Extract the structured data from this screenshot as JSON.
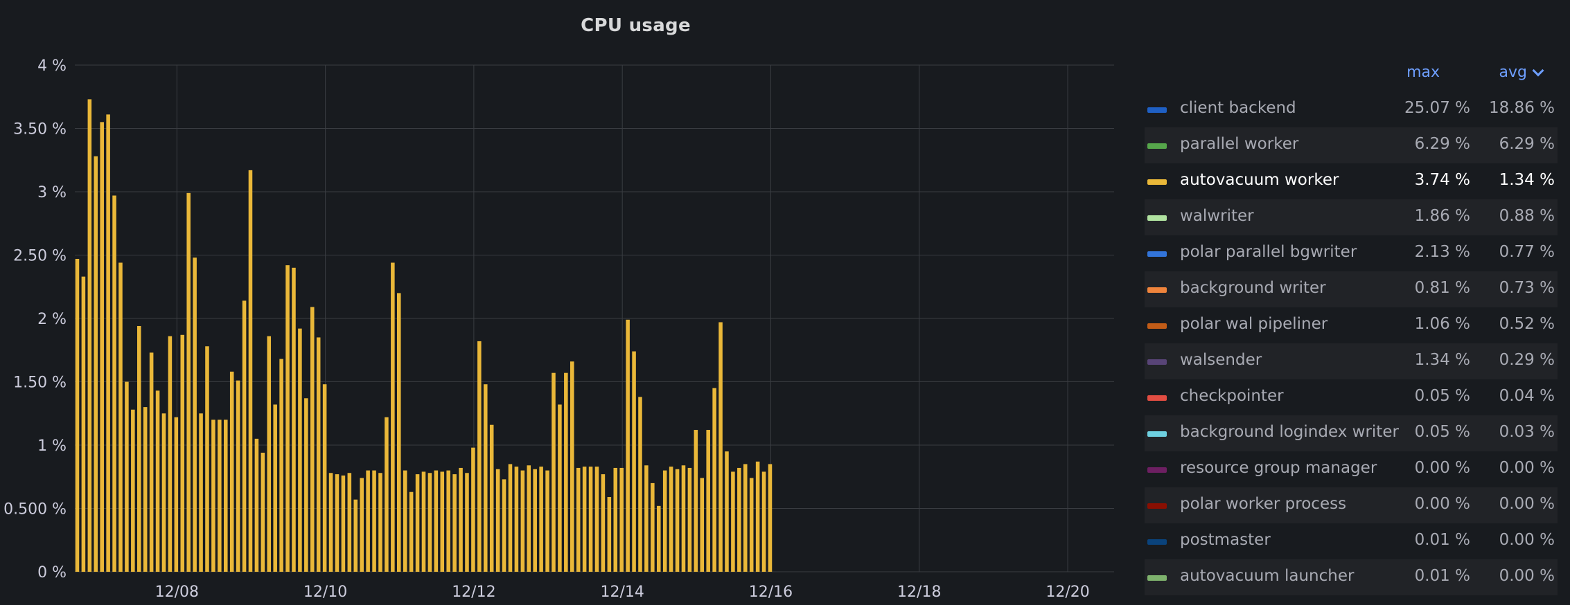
{
  "colors": {
    "background": "#181b1f",
    "grid": "#3a3d42",
    "bar": "#eab839",
    "text": "#ccccdc",
    "header_accent": "#6e9fff"
  },
  "chart_data": {
    "type": "bar",
    "title": "CPU usage",
    "xlabel": "",
    "ylabel": "",
    "unit": "%",
    "ylim": [
      0,
      4
    ],
    "grid": true,
    "legend_placement": "right",
    "y_ticks": [
      {
        "value": 0,
        "label": "0 %"
      },
      {
        "value": 0.5,
        "label": "0.500 %"
      },
      {
        "value": 1,
        "label": "1 %"
      },
      {
        "value": 1.5,
        "label": "1.50 %"
      },
      {
        "value": 2,
        "label": "2 %"
      },
      {
        "value": 2.5,
        "label": "2.50 %"
      },
      {
        "value": 3,
        "label": "3 %"
      },
      {
        "value": 3.5,
        "label": "3.50 %"
      },
      {
        "value": 4,
        "label": "4 %"
      }
    ],
    "x_ticks": [
      "12/08",
      "12/10",
      "12/12",
      "12/14",
      "12/16",
      "12/18",
      "12/20"
    ],
    "x_start": "12/06 15:00",
    "x_end": "12/20 15:00",
    "x_interval_hours": 2,
    "series": [
      {
        "name": "autovacuum worker",
        "color": "#eab839",
        "values": [
          2.47,
          2.33,
          3.73,
          3.28,
          3.55,
          3.61,
          2.97,
          2.44,
          1.5,
          1.28,
          1.94,
          1.3,
          1.73,
          1.43,
          1.25,
          1.86,
          1.22,
          1.87,
          2.99,
          2.48,
          1.25,
          1.78,
          1.2,
          1.2,
          1.2,
          1.58,
          1.51,
          2.14,
          3.17,
          1.05,
          0.94,
          1.86,
          1.32,
          1.68,
          2.42,
          2.4,
          1.92,
          1.37,
          2.09,
          1.85,
          1.48,
          0.78,
          0.77,
          0.76,
          0.78,
          0.57,
          0.74,
          0.8,
          0.8,
          0.78,
          1.22,
          2.44,
          2.2,
          0.8,
          0.63,
          0.77,
          0.79,
          0.78,
          0.8,
          0.79,
          0.8,
          0.77,
          0.82,
          0.78,
          0.98,
          1.82,
          1.48,
          1.16,
          0.81,
          0.73,
          0.85,
          0.83,
          0.8,
          0.84,
          0.81,
          0.83,
          0.8,
          1.57,
          1.32,
          1.57,
          1.66,
          0.82,
          0.83,
          0.83,
          0.83,
          0.77,
          0.59,
          0.82,
          0.82,
          1.99,
          1.74,
          1.38,
          0.84,
          0.7,
          0.52,
          0.8,
          0.83,
          0.81,
          0.84,
          0.82,
          1.12,
          0.74,
          1.12,
          1.45,
          1.97,
          0.95,
          0.79,
          0.82,
          0.85,
          0.74,
          0.87,
          0.79,
          0.85
        ]
      }
    ]
  },
  "legend": {
    "header": {
      "max_label": "max",
      "avg_label": "avg"
    },
    "rows": [
      {
        "name": "client backend",
        "color": "#1f60c4",
        "max": "25.07 %",
        "avg": "18.86 %"
      },
      {
        "name": "parallel worker",
        "color": "#56a64b",
        "max": "6.29 %",
        "avg": "6.29 %"
      },
      {
        "name": "autovacuum worker",
        "color": "#eab839",
        "max": "3.74 %",
        "avg": "1.34 %"
      },
      {
        "name": "walwriter",
        "color": "#b0e2a0",
        "max": "1.86 %",
        "avg": "0.88 %"
      },
      {
        "name": "polar parallel bgwriter",
        "color": "#3274d9",
        "max": "2.13 %",
        "avg": "0.77 %"
      },
      {
        "name": "background writer",
        "color": "#ef843c",
        "max": "0.81 %",
        "avg": "0.73 %"
      },
      {
        "name": "polar wal pipeliner",
        "color": "#c15c17",
        "max": "1.06 %",
        "avg": "0.52 %"
      },
      {
        "name": "walsender",
        "color": "#584477",
        "max": "1.34 %",
        "avg": "0.29 %"
      },
      {
        "name": "checkpointer",
        "color": "#e24d42",
        "max": "0.05 %",
        "avg": "0.04 %"
      },
      {
        "name": "background logindex writer",
        "color": "#6ed0e0",
        "max": "0.05 %",
        "avg": "0.03 %"
      },
      {
        "name": "resource group manager",
        "color": "#6d1f62",
        "max": "0.00 %",
        "avg": "0.00 %"
      },
      {
        "name": "polar worker process",
        "color": "#890f02",
        "max": "0.00 %",
        "avg": "0.00 %"
      },
      {
        "name": "postmaster",
        "color": "#0a437c",
        "max": "0.01 %",
        "avg": "0.00 %"
      },
      {
        "name": "autovacuum launcher",
        "color": "#7eb26d",
        "max": "0.01 %",
        "avg": "0.00 %"
      }
    ]
  }
}
